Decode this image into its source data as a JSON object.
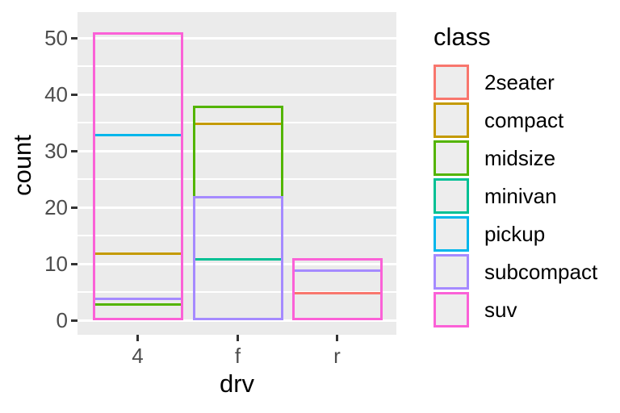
{
  "figure": {
    "background": "#FFFFFF"
  },
  "chart_data": {
    "type": "bar",
    "variant": "outlined overlapping bars (fill=none, position=identity), ggplot2 theme_grey",
    "title": "",
    "xlabel": "drv",
    "ylabel": "count",
    "categories": [
      "4",
      "f",
      "r"
    ],
    "legend_title": "class",
    "legend_position": "right",
    "grid": "on",
    "ylim": [
      0,
      51
    ],
    "yticks": [
      0,
      10,
      20,
      30,
      40,
      50
    ],
    "minor_gridlines": [
      5,
      15,
      25,
      35,
      45
    ],
    "series": [
      {
        "name": "2seater",
        "color": "#F8766D",
        "values": [
          0,
          0,
          5
        ]
      },
      {
        "name": "compact",
        "color": "#C49A00",
        "values": [
          12,
          35,
          0
        ]
      },
      {
        "name": "midsize",
        "color": "#53B400",
        "values": [
          3,
          38,
          0
        ]
      },
      {
        "name": "minivan",
        "color": "#00C094",
        "values": [
          0,
          11,
          0
        ]
      },
      {
        "name": "pickup",
        "color": "#00B6EB",
        "values": [
          33,
          0,
          0
        ]
      },
      {
        "name": "subcompact",
        "color": "#A58AFF",
        "values": [
          4,
          22,
          9
        ]
      },
      {
        "name": "suv",
        "color": "#FB61D7",
        "values": [
          51,
          0,
          11
        ]
      }
    ],
    "colors": {
      "panel_bg": "#EBEBEB",
      "grid": "#FFFFFF",
      "axis_text": "#4D4D4D",
      "axis_title": "#000000",
      "tick_mark": "#333333",
      "legend_key_bg": "#EDEDED"
    }
  }
}
